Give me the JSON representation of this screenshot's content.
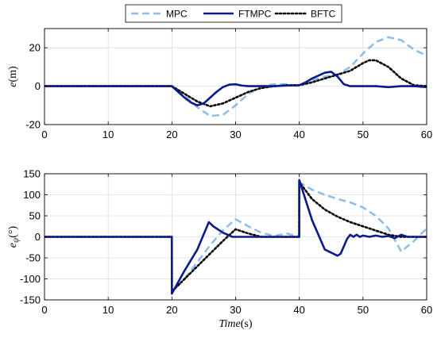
{
  "colors": {
    "mpc": "#8fbde6",
    "ftmpc": "#0b1a8c",
    "bftc": "#000000",
    "grid": "#dcdcdc"
  },
  "legend": {
    "items": [
      {
        "label": "MPC",
        "style": "dashed"
      },
      {
        "label": "FTMPC",
        "style": "solid"
      },
      {
        "label": "BFTC",
        "style": "dotted"
      }
    ],
    "placement": "top-center-outside"
  },
  "chart_data": [
    {
      "type": "line",
      "ylabel": "e(m)",
      "ylabel_parts": {
        "main": "e",
        "sub": "",
        "unit": "(m)"
      },
      "xlabel": "",
      "xlim": [
        0,
        60
      ],
      "ylim": [
        -20,
        30
      ],
      "xticks": [
        0,
        10,
        20,
        30,
        40,
        50,
        60
      ],
      "xtick_labels": [
        "0",
        "10",
        "20",
        "30",
        "40",
        "50",
        "60"
      ],
      "yticks": [
        -20,
        0,
        20
      ],
      "ytick_labels": [
        "-20",
        "0",
        "20"
      ],
      "grid": true,
      "series": [
        {
          "name": "MPC",
          "style": "dashed",
          "x": [
            0,
            20,
            22,
            24,
            26,
            28,
            30,
            32,
            34,
            36,
            38,
            40,
            42,
            44,
            46,
            48,
            50,
            52,
            54,
            56,
            58,
            60
          ],
          "y": [
            0,
            0,
            -5,
            -11,
            -15.5,
            -15,
            -10,
            -4,
            0,
            1,
            1,
            0,
            3,
            5,
            6,
            10,
            17,
            23,
            25.5,
            24,
            19,
            16
          ]
        },
        {
          "name": "FTMPC",
          "style": "solid",
          "x": [
            0,
            20,
            21,
            22,
            23,
            24,
            25,
            26,
            27,
            28,
            29,
            30,
            31,
            32,
            34,
            36,
            38,
            40,
            41,
            42,
            43,
            44,
            45,
            46,
            47,
            48,
            50,
            52,
            54,
            56,
            58,
            60
          ],
          "y": [
            0,
            0,
            -3,
            -6,
            -8.5,
            -10,
            -9,
            -6,
            -3,
            -0.5,
            0.8,
            1,
            0.3,
            0,
            0,
            0,
            0.3,
            0.5,
            2,
            4,
            5.5,
            7,
            7.5,
            5,
            1,
            0,
            0,
            0,
            -0.5,
            0,
            0,
            -0.5
          ]
        },
        {
          "name": "BFTC",
          "style": "dotted",
          "x": [
            0,
            20,
            22,
            24,
            26,
            28,
            30,
            32,
            34,
            36,
            38,
            40,
            42,
            44,
            46,
            48,
            50,
            51,
            52,
            54,
            56,
            58,
            60
          ],
          "y": [
            0,
            0,
            -4,
            -8,
            -10.5,
            -9,
            -6,
            -3,
            -1,
            0,
            0.5,
            0.5,
            2,
            4,
            6,
            8,
            12,
            13.5,
            13.5,
            10,
            4,
            0.5,
            0
          ]
        }
      ]
    },
    {
      "type": "line",
      "ylabel": "eψ(°)",
      "ylabel_parts": {
        "main": "e",
        "sub": "ψ",
        "unit": "(°)"
      },
      "xlabel": "Time(s)",
      "xlabel_parts": {
        "main": "Time",
        "unit": "(s)"
      },
      "xlim": [
        0,
        60
      ],
      "ylim": [
        -150,
        150
      ],
      "xticks": [
        0,
        10,
        20,
        30,
        40,
        50,
        60
      ],
      "xtick_labels": [
        "0",
        "10",
        "20",
        "30",
        "40",
        "50",
        "60"
      ],
      "yticks": [
        -150,
        -100,
        -50,
        0,
        50,
        100,
        150
      ],
      "ytick_labels": [
        "-150",
        "-100",
        "-50",
        "0",
        "50",
        "100",
        "150"
      ],
      "grid": true,
      "series": [
        {
          "name": "MPC",
          "style": "dashed",
          "x": [
            0,
            19.99,
            20,
            22,
            24,
            26,
            28,
            30,
            32,
            34,
            36,
            38,
            39.99,
            40,
            42,
            44,
            46,
            48,
            50,
            52,
            54,
            56,
            58,
            60
          ],
          "y": [
            0,
            0,
            -130,
            -100,
            -60,
            -20,
            15,
            42,
            25,
            10,
            2,
            8,
            0,
            130,
            112,
            100,
            90,
            82,
            70,
            50,
            20,
            -35,
            -10,
            20
          ]
        },
        {
          "name": "FTMPC",
          "style": "solid",
          "x": [
            0,
            19.99,
            20,
            22,
            24,
            25.8,
            26.5,
            28,
            29.5,
            30,
            32,
            34,
            36,
            38,
            39.99,
            40,
            42,
            44,
            46,
            46.5,
            47.5,
            48,
            48.5,
            49,
            49.5,
            50,
            51,
            52,
            53,
            54,
            55,
            56,
            57,
            58,
            60
          ],
          "y": [
            0,
            0,
            -135,
            -80,
            -30,
            35,
            25,
            10,
            0,
            0,
            0,
            0,
            0,
            0,
            0,
            135,
            40,
            -30,
            -45,
            -40,
            -5,
            5,
            0,
            5,
            0,
            3,
            0,
            3,
            0,
            2,
            -3,
            5,
            0,
            0,
            0
          ]
        },
        {
          "name": "BFTC",
          "style": "dotted",
          "x": [
            0,
            19.99,
            20,
            22,
            24,
            26,
            28,
            30,
            32,
            34,
            36,
            38,
            39.99,
            40,
            42,
            44,
            46,
            48,
            50,
            52,
            54,
            56,
            58,
            60
          ],
          "y": [
            0,
            0,
            -130,
            -100,
            -70,
            -40,
            -10,
            18,
            8,
            0,
            0,
            0,
            0,
            130,
            90,
            65,
            48,
            35,
            25,
            15,
            5,
            0,
            0,
            0
          ]
        }
      ]
    }
  ]
}
